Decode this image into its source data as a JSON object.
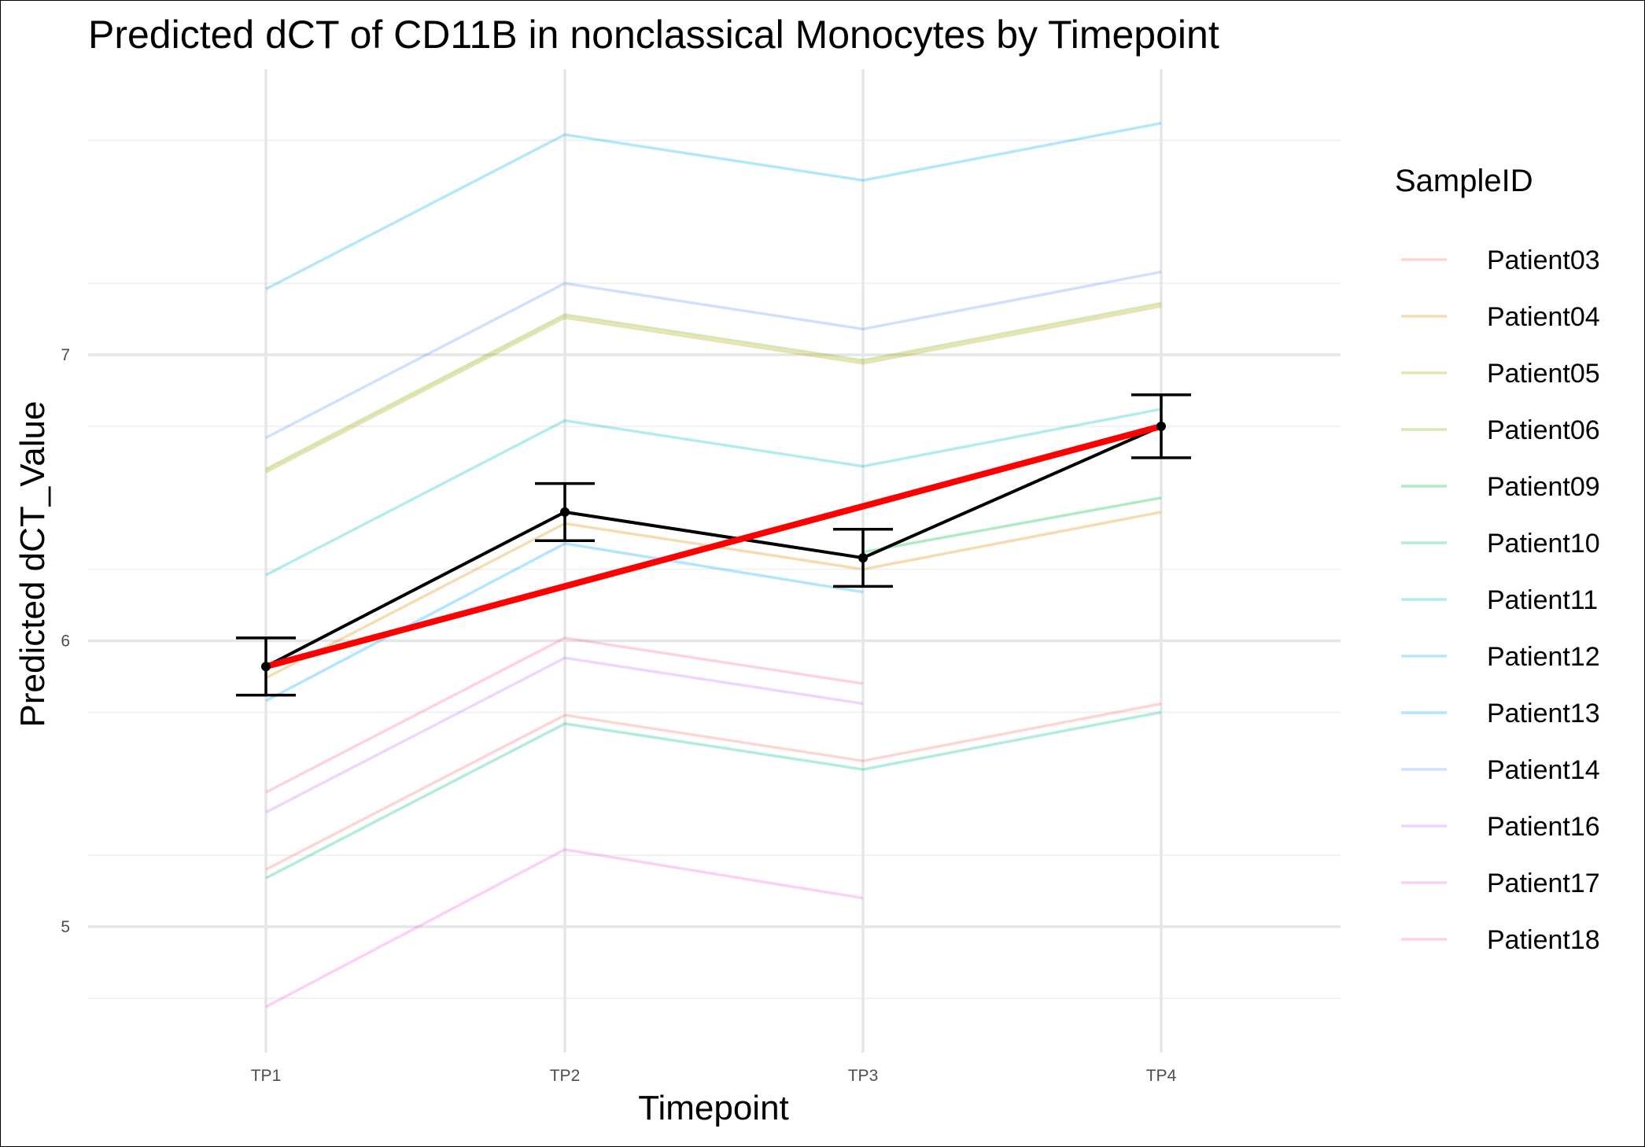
{
  "chart_data": {
    "type": "line",
    "title": "Predicted dCT of  CD11B in  nonclassical  Monocytes by Timepoint",
    "xlabel": "Timepoint",
    "ylabel": "Predicted dCT_Value",
    "categories": [
      "TP1",
      "TP2",
      "TP3",
      "TP4"
    ],
    "ylim": [
      4.55,
      7.98
    ],
    "yticks": [
      5,
      6,
      7
    ],
    "ytick_labels": [
      "5",
      "6",
      "7"
    ],
    "grid": true,
    "legend_title": "SampleID",
    "legend_position": "right",
    "series": [
      {
        "name": "Patient03",
        "color": "#F8766D",
        "values": [
          5.2,
          5.74,
          5.58,
          5.78
        ]
      },
      {
        "name": "Patient04",
        "color": "#DE8C00",
        "values": [
          5.87,
          6.41,
          6.25,
          6.45
        ]
      },
      {
        "name": "Patient05",
        "color": "#B79F00",
        "values": [
          6.59,
          7.13,
          6.97,
          7.17
        ]
      },
      {
        "name": "Patient06",
        "color": "#7CAE00",
        "values": [
          6.6,
          7.14,
          6.98,
          7.18
        ]
      },
      {
        "name": "Patient09",
        "color": "#00BA38",
        "values": [
          null,
          null,
          6.31,
          6.5
        ]
      },
      {
        "name": "Patient10",
        "color": "#00C08B",
        "values": [
          5.17,
          5.71,
          5.55,
          5.75
        ]
      },
      {
        "name": "Patient11",
        "color": "#00BFC4",
        "values": [
          6.23,
          6.77,
          6.61,
          6.81
        ]
      },
      {
        "name": "Patient12",
        "color": "#00B4F0",
        "values": [
          7.23,
          7.77,
          7.61,
          7.81
        ]
      },
      {
        "name": "Patient13",
        "color": "#00A9FF",
        "values": [
          5.79,
          6.34,
          6.17,
          null
        ]
      },
      {
        "name": "Patient14",
        "color": "#619CFF",
        "values": [
          6.71,
          7.25,
          7.09,
          7.29
        ]
      },
      {
        "name": "Patient16",
        "color": "#C77CFF",
        "values": [
          5.4,
          5.94,
          5.78,
          null
        ]
      },
      {
        "name": "Patient17",
        "color": "#F564E3",
        "values": [
          4.72,
          5.27,
          5.1,
          null
        ]
      },
      {
        "name": "Patient18",
        "color": "#FF64B0",
        "values": [
          5.47,
          6.01,
          5.85,
          null
        ]
      }
    ],
    "mean": {
      "color": "#000000",
      "values": [
        5.91,
        6.45,
        6.29,
        6.75
      ],
      "errors": [
        0.1,
        0.1,
        0.1,
        0.11
      ]
    },
    "trend": {
      "color": "#FF0000",
      "values": [
        5.91,
        6.19,
        6.47,
        6.75
      ]
    }
  }
}
